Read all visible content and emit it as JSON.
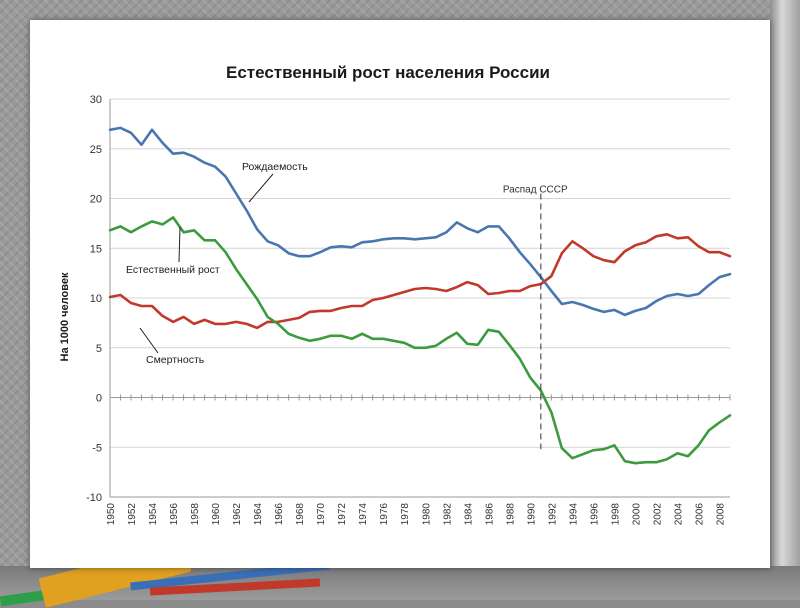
{
  "chart_data": {
    "type": "line",
    "title": "Естественный рост населения России",
    "ylabel": "На 1000 человек",
    "xlabel": "",
    "ylim": [
      -10,
      30
    ],
    "yticks": [
      -10,
      -5,
      0,
      5,
      10,
      15,
      20,
      25,
      30
    ],
    "xlim": [
      1950,
      2009
    ],
    "xticks": [
      "1950",
      "1952",
      "1954",
      "1956",
      "1958",
      "1960",
      "1962",
      "1964",
      "1966",
      "1968",
      "1970",
      "1972",
      "1974",
      "1976",
      "1978",
      "1980",
      "1982",
      "1984",
      "1986",
      "1988",
      "1990",
      "1992",
      "1994",
      "1996",
      "1998",
      "2000",
      "2002",
      "2004",
      "2006",
      "2008"
    ],
    "grid": "horizontal",
    "x": [
      1950,
      1951,
      1952,
      1953,
      1954,
      1955,
      1956,
      1957,
      1958,
      1959,
      1960,
      1961,
      1962,
      1963,
      1964,
      1965,
      1966,
      1967,
      1968,
      1969,
      1970,
      1971,
      1972,
      1973,
      1974,
      1975,
      1976,
      1977,
      1978,
      1979,
      1980,
      1981,
      1982,
      1983,
      1984,
      1985,
      1986,
      1987,
      1988,
      1989,
      1990,
      1991,
      1992,
      1993,
      1994,
      1995,
      1996,
      1997,
      1998,
      1999,
      2000,
      2001,
      2002,
      2003,
      2004,
      2005,
      2006,
      2007,
      2008,
      2009
    ],
    "series": [
      {
        "name": "Рождаемость",
        "color": "#4a76b0",
        "values": [
          26.9,
          27.1,
          26.6,
          25.4,
          26.9,
          25.6,
          24.5,
          24.6,
          24.2,
          23.6,
          23.2,
          22.2,
          20.5,
          18.8,
          16.9,
          15.7,
          15.3,
          14.5,
          14.2,
          14.2,
          14.6,
          15.1,
          15.2,
          15.1,
          15.6,
          15.7,
          15.9,
          16.0,
          16.0,
          15.9,
          16.0,
          16.1,
          16.6,
          17.6,
          17.0,
          16.6,
          17.2,
          17.2,
          16.0,
          14.6,
          13.4,
          12.1,
          10.7,
          9.4,
          9.6,
          9.3,
          8.9,
          8.6,
          8.8,
          8.3,
          8.7,
          9.0,
          9.7,
          10.2,
          10.4,
          10.2,
          10.4,
          11.3,
          12.1,
          12.4
        ]
      },
      {
        "name": "Смертность",
        "color": "#c0392b",
        "values": [
          10.1,
          10.3,
          9.5,
          9.2,
          9.2,
          8.2,
          7.6,
          8.1,
          7.4,
          7.8,
          7.4,
          7.4,
          7.6,
          7.4,
          7.0,
          7.6,
          7.6,
          7.8,
          8.0,
          8.6,
          8.7,
          8.7,
          9.0,
          9.2,
          9.2,
          9.8,
          10.0,
          10.3,
          10.6,
          10.9,
          11.0,
          10.9,
          10.7,
          11.1,
          11.6,
          11.3,
          10.4,
          10.5,
          10.7,
          10.7,
          11.2,
          11.4,
          12.2,
          14.5,
          15.7,
          15.0,
          14.2,
          13.8,
          13.6,
          14.7,
          15.3,
          15.6,
          16.2,
          16.4,
          16.0,
          16.1,
          15.2,
          14.6,
          14.6,
          14.2
        ]
      },
      {
        "name": "Естественный рост",
        "color": "#3e9a3e",
        "values": [
          16.8,
          17.2,
          16.6,
          17.2,
          17.7,
          17.4,
          18.1,
          16.6,
          16.8,
          15.8,
          15.8,
          14.6,
          12.9,
          11.4,
          9.9,
          8.1,
          7.4,
          6.4,
          6.0,
          5.7,
          5.9,
          6.2,
          6.2,
          5.9,
          6.4,
          5.9,
          5.9,
          5.7,
          5.5,
          5.0,
          5.0,
          5.2,
          5.9,
          6.5,
          5.4,
          5.3,
          6.8,
          6.6,
          5.3,
          3.9,
          2.0,
          0.7,
          -1.5,
          -5.1,
          -6.1,
          -5.7,
          -5.3,
          -5.2,
          -4.8,
          -6.4,
          -6.6,
          -6.5,
          -6.5,
          -6.2,
          -5.6,
          -5.9,
          -4.8,
          -3.3,
          -2.5,
          -1.8
        ]
      }
    ],
    "annotations": {
      "births_label": "Рождаемость",
      "deaths_label": "Смертность",
      "growth_label": "Естественный рост",
      "collapse_label": "Распад СССР",
      "collapse_year": 1991
    }
  }
}
